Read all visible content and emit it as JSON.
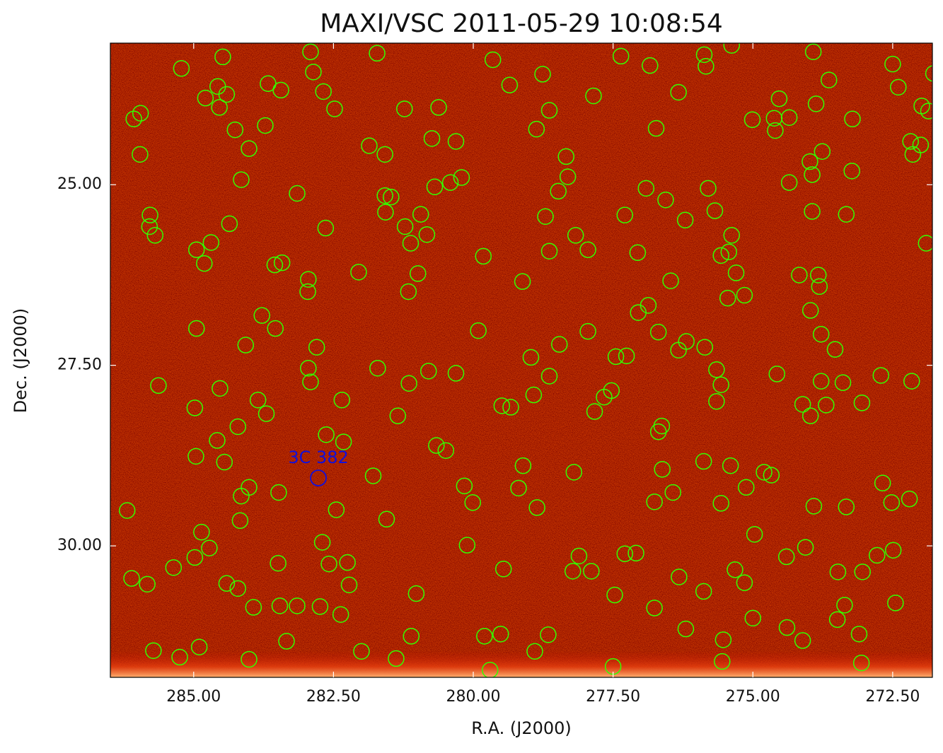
{
  "chart_data": {
    "type": "sky-image",
    "title": "MAXI/VSC 2011-05-29 10:08:54",
    "x_label": "R.A. (J2000)",
    "y_label": "Dec. (J2000)",
    "xlim": [
      286.49,
      271.79
    ],
    "ylim": [
      31.82,
      23.04
    ],
    "xticks": [
      {
        "value": 285,
        "label": "285.00"
      },
      {
        "value": 282.5,
        "label": "282.50"
      },
      {
        "value": 280,
        "label": "280.00"
      },
      {
        "value": 277.5,
        "label": "277.50"
      },
      {
        "value": 275,
        "label": "275.00"
      },
      {
        "value": 272.5,
        "label": "272.50"
      }
    ],
    "yticks": [
      {
        "value": 25,
        "label": "25.00"
      },
      {
        "value": 27.5,
        "label": "27.50"
      },
      {
        "value": 30,
        "label": "30.00"
      }
    ],
    "series": [
      {
        "color": "#33ff00",
        "x": [
          285.22,
          284.48,
          284.57,
          284.79,
          284.41,
          284.54,
          285.95,
          286.07,
          284.26,
          285.96,
          284.01,
          283.72,
          283.67,
          283.44,
          284.15,
          282.91,
          282.86,
          282.68,
          282.48,
          281.72,
          283.15,
          285.78,
          285.79,
          285.69,
          284.69,
          284.95,
          284.81,
          284.36,
          283.55,
          283.42,
          282.64,
          282.95,
          282.96,
          283.78,
          283.54,
          284.95,
          284.07,
          282.8,
          282.95,
          282.91,
          285.63,
          284.53,
          284.98,
          283.85,
          283.7,
          284.21,
          282.35,
          284.58,
          284.96,
          284.45,
          282.63,
          282.32,
          281.79,
          283.48,
          284.01,
          284.15,
          286.19,
          284.17,
          282.45,
          284.86,
          284.72,
          282.7,
          284.98,
          285.36,
          283.49,
          282.58,
          282.25,
          286.11,
          285.83,
          284.41,
          284.21,
          282.22,
          283.93,
          283.46,
          283.15,
          282.74,
          282.37,
          283.34,
          285.72,
          285.25,
          284.9,
          284.01,
          282.0,
          281.58,
          281.47,
          281.57,
          281.86,
          281.58,
          281.23,
          280.62,
          280.74,
          280.31,
          280.21,
          280.41,
          280.69,
          280.94,
          280.83,
          281.12,
          281.22,
          282.05,
          280.99,
          281.16,
          279.82,
          279.65,
          279.35,
          278.76,
          278.64,
          278.87,
          278.34,
          278.31,
          278.48,
          278.71,
          278.64,
          278.17,
          277.95,
          277.85,
          277.36,
          276.84,
          276.33,
          276.73,
          276.91,
          276.56,
          276.21,
          277.29,
          277.06,
          276.47,
          277.05,
          276.69,
          276.87,
          279.12,
          279.91,
          278.46,
          278.97,
          278.64,
          277.95,
          277.45,
          277.26,
          277.53,
          277.66,
          277.83,
          278.92,
          279.49,
          279.33,
          280.31,
          280.8,
          281.15,
          281.35,
          280.66,
          280.49,
          281.71,
          279.11,
          280.16,
          280.01,
          279.19,
          278.86,
          278.2,
          281.55,
          280.11,
          279.46,
          278.11,
          278.22,
          277.89,
          277.29,
          277.09,
          281.02,
          277.47,
          276.76,
          279.8,
          279.51,
          278.66,
          278.9,
          279.7,
          281.11,
          281.38,
          277.5,
          276.2,
          275.88,
          275.53,
          275.55,
          275.0,
          274.39,
          274.11,
          273.49,
          273.36,
          273.1,
          273.06,
          272.45,
          273.48,
          273.04,
          272.78,
          272.49,
          274.06,
          274.4,
          275.32,
          275.15,
          276.32,
          274.97,
          275.12,
          275.57,
          275.4,
          275.88,
          276.43,
          276.76,
          276.62,
          276.69,
          276.63,
          275.65,
          275.57,
          275.65,
          275.86,
          276.19,
          276.33,
          274.57,
          274.8,
          274.67,
          273.91,
          273.33,
          272.68,
          272.52,
          272.2,
          273.05,
          272.71,
          272.16,
          274.11,
          273.97,
          273.69,
          273.78,
          273.39,
          273.53,
          273.78,
          273.97,
          273.83,
          273.81,
          274.17,
          275.15,
          275.45,
          275.3,
          275.57,
          275.43,
          275.38,
          275.68,
          275.8,
          273.94,
          273.94,
          273.98,
          274.35,
          273.33,
          273.23,
          273.76,
          274.6,
          275.01,
          274.62,
          274.35,
          274.53,
          273.87,
          273.64,
          273.92,
          275.84,
          275.87,
          275.38,
          272.5,
          272.4,
          271.77,
          271.98,
          271.86,
          273.22,
          272.18,
          272.0,
          272.14,
          271.9
        ],
        "y": [
          23.39,
          23.23,
          23.64,
          23.8,
          23.75,
          23.93,
          24.01,
          24.09,
          24.24,
          24.58,
          24.5,
          24.18,
          23.6,
          23.69,
          24.93,
          23.16,
          23.44,
          23.71,
          23.95,
          23.18,
          25.12,
          25.42,
          25.58,
          25.7,
          25.8,
          25.9,
          26.09,
          25.54,
          26.11,
          26.08,
          25.6,
          26.31,
          26.48,
          26.81,
          26.99,
          26.99,
          27.22,
          27.25,
          27.54,
          27.73,
          27.78,
          27.82,
          28.09,
          27.98,
          28.17,
          28.35,
          27.98,
          28.54,
          28.76,
          28.84,
          28.46,
          28.56,
          29.03,
          29.26,
          29.19,
          29.31,
          29.51,
          29.65,
          29.5,
          29.81,
          30.03,
          29.95,
          30.16,
          30.3,
          30.24,
          30.25,
          30.23,
          30.45,
          30.53,
          30.52,
          30.59,
          30.54,
          30.85,
          30.83,
          30.83,
          30.84,
          30.95,
          31.32,
          31.45,
          31.54,
          31.4,
          31.57,
          31.46,
          25.15,
          25.17,
          25.38,
          24.46,
          24.58,
          23.95,
          23.93,
          24.36,
          24.4,
          24.9,
          24.97,
          25.03,
          25.41,
          25.69,
          25.81,
          25.58,
          26.21,
          26.23,
          26.48,
          25.99,
          23.27,
          23.62,
          23.47,
          23.97,
          24.23,
          24.61,
          24.89,
          25.09,
          25.44,
          25.92,
          25.7,
          25.9,
          23.77,
          23.22,
          23.35,
          23.72,
          24.22,
          25.05,
          25.21,
          25.49,
          25.42,
          25.94,
          26.33,
          26.77,
          27.04,
          26.67,
          26.34,
          27.02,
          27.21,
          27.39,
          27.65,
          27.03,
          27.38,
          27.37,
          27.85,
          27.94,
          28.14,
          27.91,
          28.06,
          28.08,
          27.61,
          27.58,
          27.75,
          28.2,
          28.61,
          28.68,
          27.54,
          28.89,
          29.17,
          29.4,
          29.2,
          29.47,
          28.98,
          29.63,
          29.99,
          30.32,
          30.14,
          30.35,
          30.35,
          30.11,
          30.1,
          30.66,
          30.68,
          30.86,
          31.25,
          31.22,
          31.23,
          31.46,
          31.72,
          31.25,
          31.56,
          31.67,
          31.15,
          30.63,
          31.3,
          31.6,
          31.0,
          31.13,
          31.31,
          31.02,
          30.82,
          31.22,
          31.62,
          30.79,
          30.36,
          30.36,
          30.13,
          30.06,
          30.02,
          30.15,
          30.33,
          30.51,
          30.43,
          29.84,
          29.19,
          29.41,
          28.89,
          28.83,
          29.26,
          29.39,
          28.94,
          28.42,
          28.34,
          28.0,
          27.77,
          27.56,
          27.25,
          27.17,
          27.29,
          27.62,
          28.98,
          29.02,
          29.45,
          29.46,
          29.13,
          29.4,
          29.35,
          28.02,
          27.64,
          27.72,
          28.04,
          28.2,
          28.05,
          27.72,
          27.74,
          27.28,
          27.07,
          26.74,
          26.25,
          26.41,
          26.25,
          26.53,
          26.57,
          26.22,
          25.98,
          25.93,
          25.7,
          25.36,
          25.05,
          25.37,
          24.86,
          24.68,
          24.97,
          25.41,
          24.81,
          24.54,
          24.25,
          24.1,
          24.08,
          24.07,
          23.81,
          23.88,
          23.55,
          23.16,
          23.36,
          23.2,
          23.07,
          23.33,
          23.65,
          23.46,
          23.91,
          23.98,
          24.09,
          24.4,
          24.45,
          24.58,
          25.81
        ]
      }
    ],
    "annotations": [
      {
        "text": "3C 382",
        "x": 282.77,
        "y": 29.06,
        "color": "#1010dd"
      }
    ]
  }
}
